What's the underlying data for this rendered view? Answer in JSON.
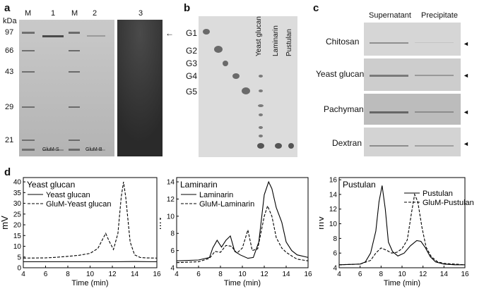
{
  "panel_letters": {
    "a": "a",
    "b": "b",
    "c": "c",
    "d": "d"
  },
  "panel_a": {
    "unit": "kDa",
    "lane_headers": [
      "M",
      "1",
      "M",
      "2",
      "3"
    ],
    "markers": [
      "97",
      "66",
      "43",
      "29",
      "21"
    ],
    "lane_labels": [
      "GluM-S",
      "GluM-B"
    ],
    "arrow": "←"
  },
  "panel_b": {
    "standards": [
      "G1",
      "G2",
      "G3",
      "G4",
      "G5"
    ],
    "lanes": [
      "Yeast glucan",
      "Laminarin",
      "Pustulan"
    ]
  },
  "panel_c": {
    "columns": [
      "Supernatant",
      "Precipitate"
    ],
    "rows": [
      "Chitosan",
      "Yeast glucan",
      "Pachyman",
      "Dextran"
    ],
    "arrow": "◄"
  },
  "chart_data": [
    {
      "type": "line",
      "title": "Yeast glucan",
      "xlabel": "Time (min)",
      "ylabel": "mV",
      "xlim": [
        4,
        16
      ],
      "ylim": [
        0,
        42
      ],
      "xticks": [
        4,
        6,
        8,
        10,
        12,
        14,
        16
      ],
      "yticks": [
        0,
        5,
        10,
        15,
        20,
        25,
        30,
        35,
        40
      ],
      "legend": "top-left",
      "series": [
        {
          "name": "Yeast glucan",
          "style": "solid",
          "x": [
            4,
            6,
            8,
            10,
            12,
            14,
            16
          ],
          "y": [
            2.8,
            2.8,
            2.8,
            2.8,
            2.8,
            2.9,
            2.8
          ]
        },
        {
          "name": "GluM-Yeast glucan",
          "style": "dashed",
          "x": [
            4,
            6,
            7,
            8,
            9,
            10,
            10.7,
            11.1,
            11.4,
            11.7,
            12.1,
            12.5,
            12.8,
            13.0,
            13.2,
            13.6,
            14.0,
            14.5,
            15,
            16
          ],
          "y": [
            4.5,
            4.6,
            4.9,
            5.3,
            5.8,
            6.7,
            9,
            13,
            16,
            12.5,
            8.5,
            16,
            33,
            40,
            33,
            12,
            6,
            4.8,
            4.6,
            4.5
          ]
        }
      ]
    },
    {
      "type": "line",
      "title": "Laminarin",
      "xlabel": "Time (min)",
      "ylabel": "mV",
      "xlim": [
        4,
        16
      ],
      "ylim": [
        4,
        14.5
      ],
      "xticks": [
        4,
        6,
        8,
        10,
        12,
        14,
        16
      ],
      "yticks": [
        4,
        6,
        8,
        10,
        12,
        14
      ],
      "legend": "top-left",
      "series": [
        {
          "name": "Laminarin",
          "style": "solid",
          "x": [
            4,
            6,
            7,
            7.3,
            7.7,
            8.1,
            8.5,
            8.9,
            9.3,
            9.8,
            10.5,
            11.0,
            11.5,
            12.0,
            12.4,
            12.7,
            13.1,
            13.6,
            14.0,
            14.5,
            15,
            16
          ],
          "y": [
            4.8,
            4.9,
            5.2,
            6.3,
            7.2,
            6.4,
            7.2,
            7.7,
            5.9,
            5.5,
            5.1,
            5.2,
            7.0,
            12.5,
            14.0,
            13.2,
            11.0,
            9.3,
            7.0,
            6.0,
            5.5,
            5.2
          ]
        },
        {
          "name": "GluM-Laminarin",
          "style": "dashed",
          "x": [
            4,
            6,
            7,
            7.5,
            8,
            8.5,
            9,
            9.5,
            10,
            10.5,
            10.9,
            11.4,
            12.0,
            12.3,
            12.7,
            13.1,
            13.6,
            14.0,
            14.6,
            15,
            16
          ],
          "y": [
            4.6,
            4.7,
            5.1,
            5.9,
            5.8,
            6.6,
            6.5,
            5.7,
            6.3,
            8.4,
            6.0,
            6.2,
            10.0,
            11.2,
            10.0,
            7.5,
            6.3,
            5.8,
            5.3,
            5.0,
            4.8
          ]
        }
      ]
    },
    {
      "type": "line",
      "title": "Pustulan",
      "xlabel": "Time (min)",
      "ylabel": "mV",
      "xlim": [
        4,
        16
      ],
      "ylim": [
        4,
        16.3
      ],
      "xticks": [
        4,
        6,
        8,
        10,
        12,
        14,
        16
      ],
      "yticks": [
        4,
        6,
        8,
        10,
        12,
        14,
        16
      ],
      "legend": "top-right",
      "series": [
        {
          "name": "Pustulan",
          "style": "solid",
          "x": [
            4,
            6,
            6.5,
            7,
            7.5,
            7.8,
            8.1,
            8.4,
            8.7,
            9.1,
            9.6,
            10.2,
            10.8,
            11.4,
            11.8,
            12.2,
            12.7,
            13.2,
            14,
            15,
            16
          ],
          "y": [
            4.4,
            4.5,
            4.8,
            6.0,
            9.0,
            13.0,
            15.2,
            12.0,
            7.5,
            6.2,
            5.6,
            6.0,
            7.0,
            7.7,
            7.6,
            6.8,
            5.5,
            4.8,
            4.5,
            4.4,
            4.4
          ]
        },
        {
          "name": "GluM-Pustulan",
          "style": "dashed",
          "x": [
            4,
            6,
            7,
            7.5,
            8,
            8.5,
            9,
            9.5,
            10,
            10.5,
            10.9,
            11.2,
            11.5,
            11.9,
            12.3,
            12.8,
            13.4,
            14,
            15,
            16
          ],
          "y": [
            4.4,
            4.5,
            5.0,
            6.0,
            6.7,
            6.4,
            6.0,
            6.1,
            6.6,
            7.8,
            11.5,
            14.0,
            13.0,
            9.5,
            6.8,
            5.5,
            4.8,
            4.6,
            4.5,
            4.4
          ]
        }
      ]
    }
  ]
}
